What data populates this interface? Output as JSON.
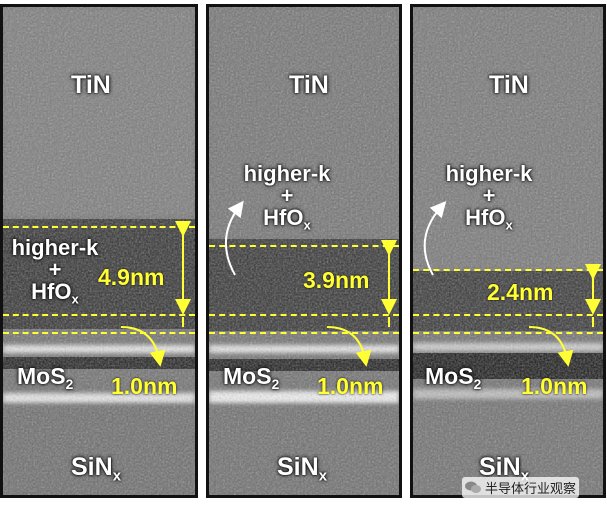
{
  "panels": [
    {
      "top_label": "TiN",
      "dielectric_line1": "higher-k",
      "dielectric_line2": "+",
      "dielectric_line3": "HfO",
      "dielectric_sub": "x",
      "thickness_top": "4.9nm",
      "channel_label": "MoS",
      "channel_sub": "2",
      "thickness_bottom": "1.0nm",
      "substrate_label": "SiN",
      "substrate_sub": "x"
    },
    {
      "top_label": "TiN",
      "dielectric_line1": "higher-k",
      "dielectric_line2": "+",
      "dielectric_line3": "HfO",
      "dielectric_sub": "x",
      "thickness_top": "3.9nm",
      "channel_label": "MoS",
      "channel_sub": "2",
      "thickness_bottom": "1.0nm",
      "substrate_label": "SiN",
      "substrate_sub": "x"
    },
    {
      "top_label": "TiN",
      "dielectric_line1": "higher-k",
      "dielectric_line2": "+",
      "dielectric_line3": "HfO",
      "dielectric_sub": "x",
      "thickness_top": "2.4nm",
      "channel_label": "MoS",
      "channel_sub": "2",
      "thickness_bottom": "1.0nm",
      "substrate_label": "SiN",
      "substrate_sub": "x"
    }
  ],
  "watermark": {
    "text": "半导体行业观察",
    "icon": "wechat-icon"
  },
  "colors": {
    "annotation": "#ffff33",
    "label": "#ffffff",
    "border": "#111111"
  }
}
